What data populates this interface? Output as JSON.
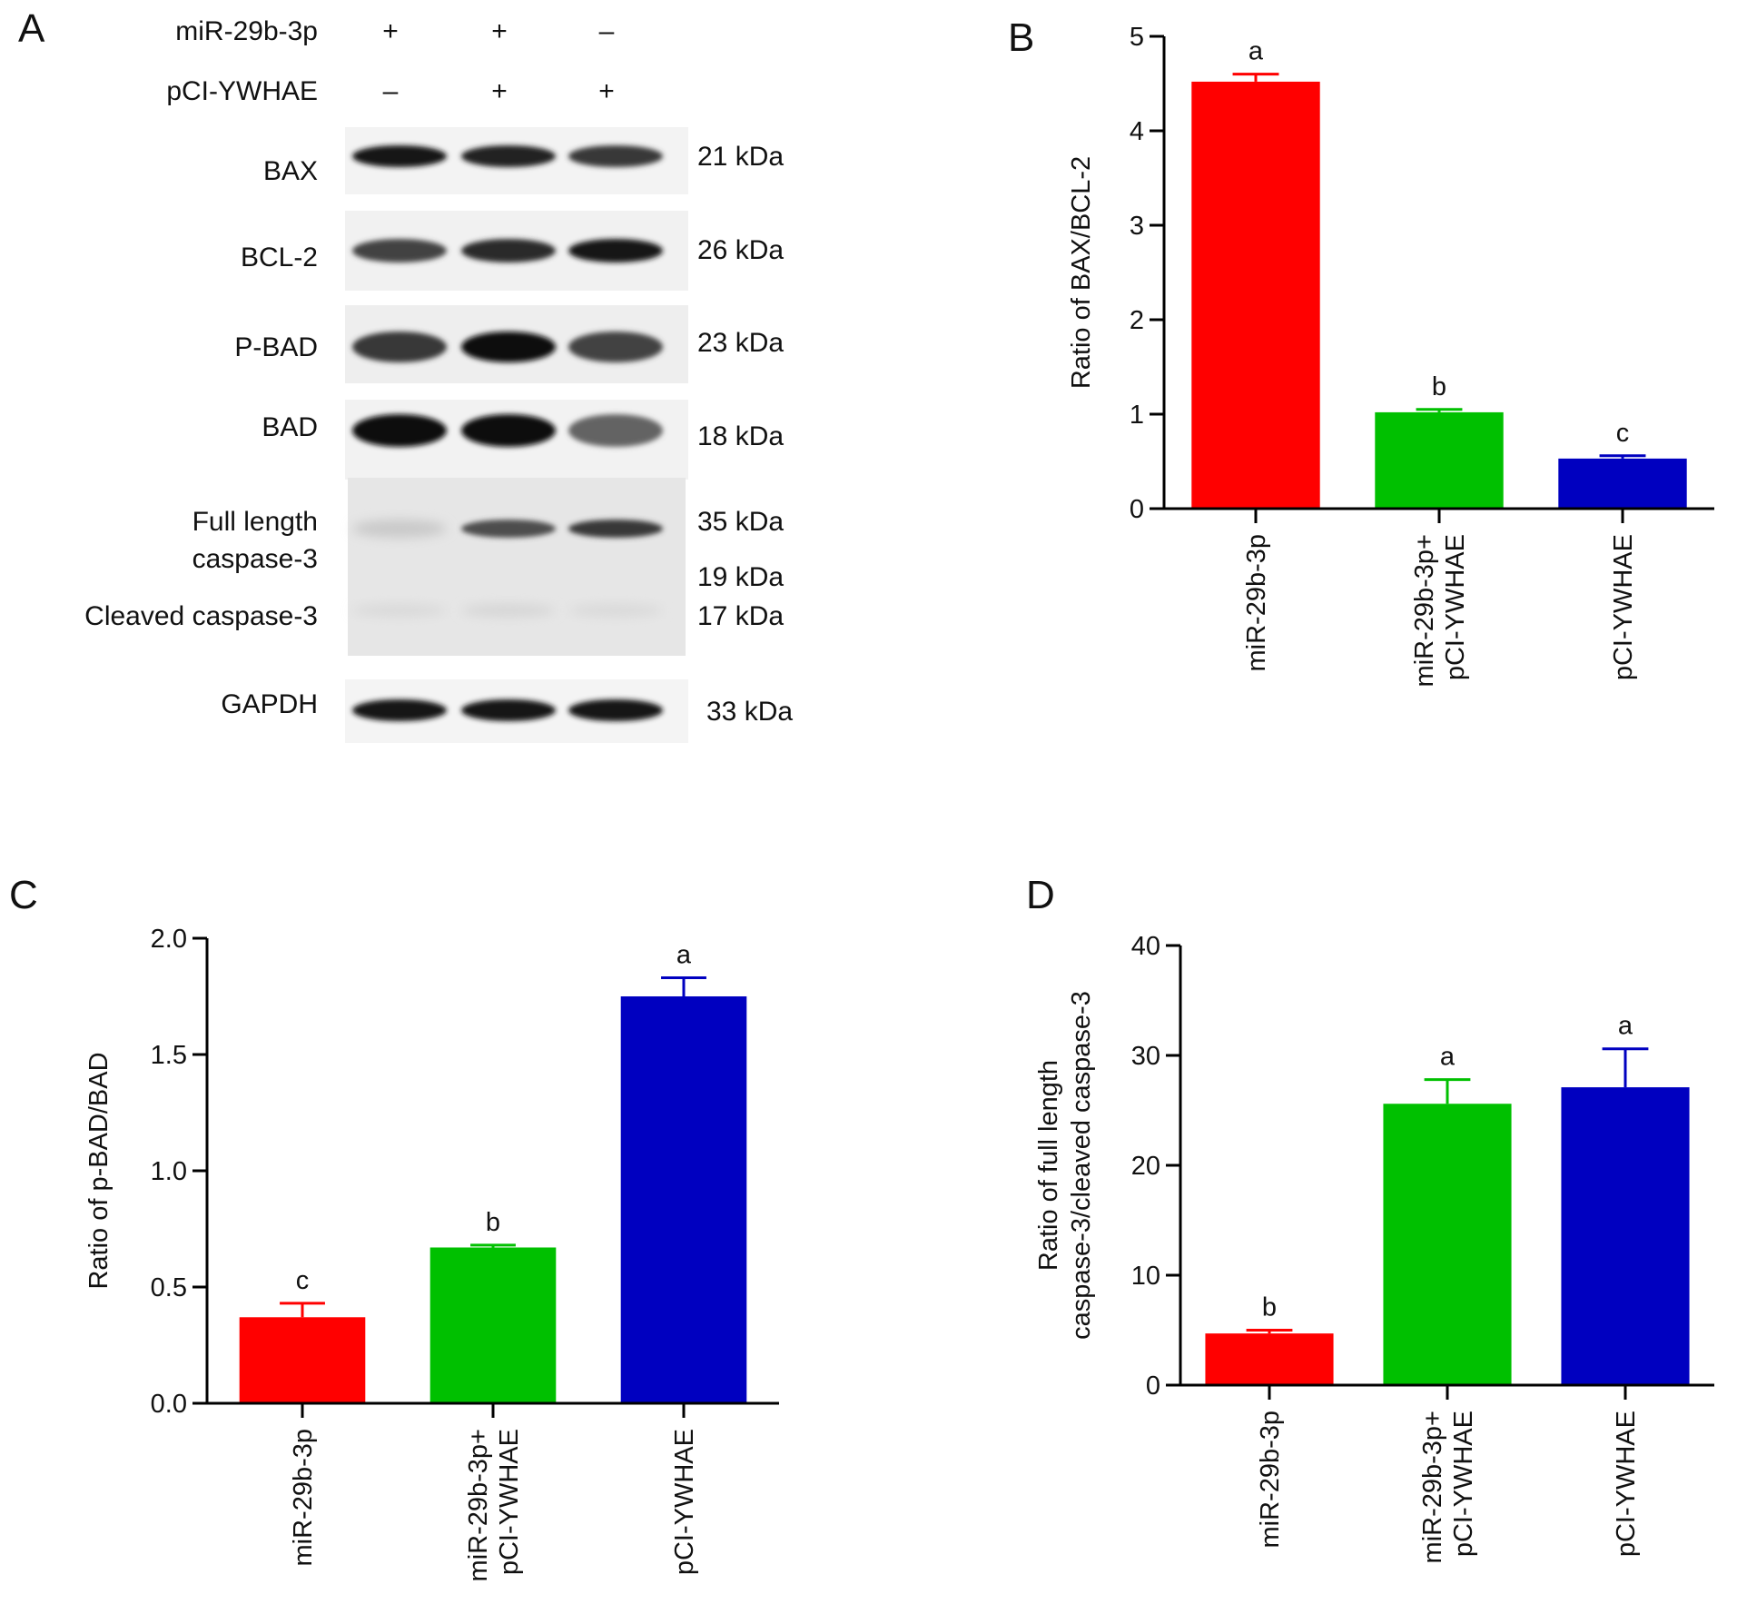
{
  "panel_a": {
    "letter": "A",
    "treatments": [
      {
        "name": "miR-29b-3p",
        "signs": [
          "+",
          "+",
          "–"
        ]
      },
      {
        "name": "pCI-YWHAE",
        "signs": [
          "–",
          "+",
          "+"
        ]
      }
    ],
    "blots": [
      {
        "label": "BAX",
        "kda": "21 kDa",
        "intensity": [
          0.95,
          0.9,
          0.8
        ]
      },
      {
        "label": "BCL-2",
        "kda": "26 kDa",
        "intensity": [
          0.75,
          0.85,
          0.95
        ]
      },
      {
        "label": "P-BAD",
        "kda": "23 kDa",
        "intensity": [
          0.8,
          1.0,
          0.75
        ]
      },
      {
        "label": "BAD",
        "kda": "18 kDa",
        "intensity": [
          1.0,
          1.0,
          0.6
        ]
      },
      {
        "label": "Full length",
        "label2": "caspase-3",
        "kda": "35 kDa",
        "kda2": "19 kDa",
        "intensity": [
          0.15,
          0.7,
          0.8
        ]
      },
      {
        "label": "Cleaved caspase-3",
        "kda": "17 kDa",
        "intensity": [
          0.08,
          0.1,
          0.08
        ]
      },
      {
        "label": "GAPDH",
        "kda": "33 kDa",
        "intensity": [
          0.95,
          0.95,
          0.95
        ]
      }
    ]
  },
  "chart_data": [
    {
      "panel": "B",
      "type": "bar",
      "categories": [
        "miR-29b-3p",
        "miR-29b-3p+|pCI-YWHAE",
        "pCI-YWHAE"
      ],
      "values": [
        4.52,
        1.02,
        0.53
      ],
      "errors": [
        0.08,
        0.03,
        0.03
      ],
      "letters": [
        "a",
        "b",
        "c"
      ],
      "colors": [
        "#ff0000",
        "#00c000",
        "#0000c0"
      ],
      "ylabel": [
        "Ratio of BAX/BCL-2"
      ],
      "ylim": [
        0,
        5
      ],
      "yticks": [
        0,
        1,
        2,
        3,
        4,
        5
      ],
      "tick_labels": [
        "0",
        "1",
        "2",
        "3",
        "4",
        "5"
      ]
    },
    {
      "panel": "C",
      "type": "bar",
      "categories": [
        "miR-29b-3p",
        "miR-29b-3p+|pCI-YWHAE",
        "pCI-YWHAE"
      ],
      "values": [
        0.37,
        0.67,
        1.75
      ],
      "errors": [
        0.06,
        0.01,
        0.08
      ],
      "letters": [
        "c",
        "b",
        "a"
      ],
      "colors": [
        "#ff0000",
        "#00c000",
        "#0000c0"
      ],
      "ylabel": [
        "Ratio of p-BAD/BAD"
      ],
      "ylim": [
        0,
        2.0
      ],
      "yticks": [
        0,
        0.5,
        1.0,
        1.5,
        2.0
      ],
      "tick_labels": [
        "0.0",
        "0.5",
        "1.0",
        "1.5",
        "2.0"
      ]
    },
    {
      "panel": "D",
      "type": "bar",
      "categories": [
        "miR-29b-3p",
        "miR-29b-3p+|pCI-YWHAE",
        "pCI-YWHAE"
      ],
      "values": [
        4.7,
        25.6,
        27.1
      ],
      "errors": [
        0.3,
        2.2,
        3.5
      ],
      "letters": [
        "b",
        "a",
        "a"
      ],
      "colors": [
        "#ff0000",
        "#00c000",
        "#0000c0"
      ],
      "ylabel": [
        "Ratio of full length",
        "caspase-3/cleaved caspase-3"
      ],
      "ylim": [
        0,
        40
      ],
      "yticks": [
        0,
        10,
        20,
        30,
        40
      ],
      "tick_labels": [
        "0",
        "10",
        "20",
        "30",
        "40"
      ]
    }
  ]
}
